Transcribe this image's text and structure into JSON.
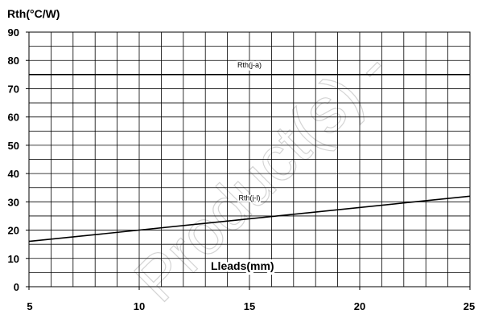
{
  "chart_data": {
    "type": "line",
    "ylabel": "Rth(°C/W)",
    "xlabel": "Lleads(mm)",
    "xlim": [
      5,
      25
    ],
    "ylim": [
      0,
      90
    ],
    "x_ticks": [
      5,
      10,
      15,
      20,
      25
    ],
    "y_ticks": [
      0,
      10,
      20,
      30,
      40,
      50,
      60,
      70,
      80,
      90
    ],
    "x_minor_step": 1,
    "y_minor_step": 5,
    "grid": true,
    "series": [
      {
        "name": "Rth(j-a)",
        "x": [
          5,
          25
        ],
        "y": [
          75,
          75
        ]
      },
      {
        "name": "Rth(j-l)",
        "x": [
          5,
          25
        ],
        "y": [
          16,
          32
        ]
      }
    ],
    "watermark": "Product(s) -",
    "colors": {
      "line": "#000000",
      "grid": "#000000",
      "background": "#ffffff",
      "watermark": "#d4d4d4"
    }
  }
}
